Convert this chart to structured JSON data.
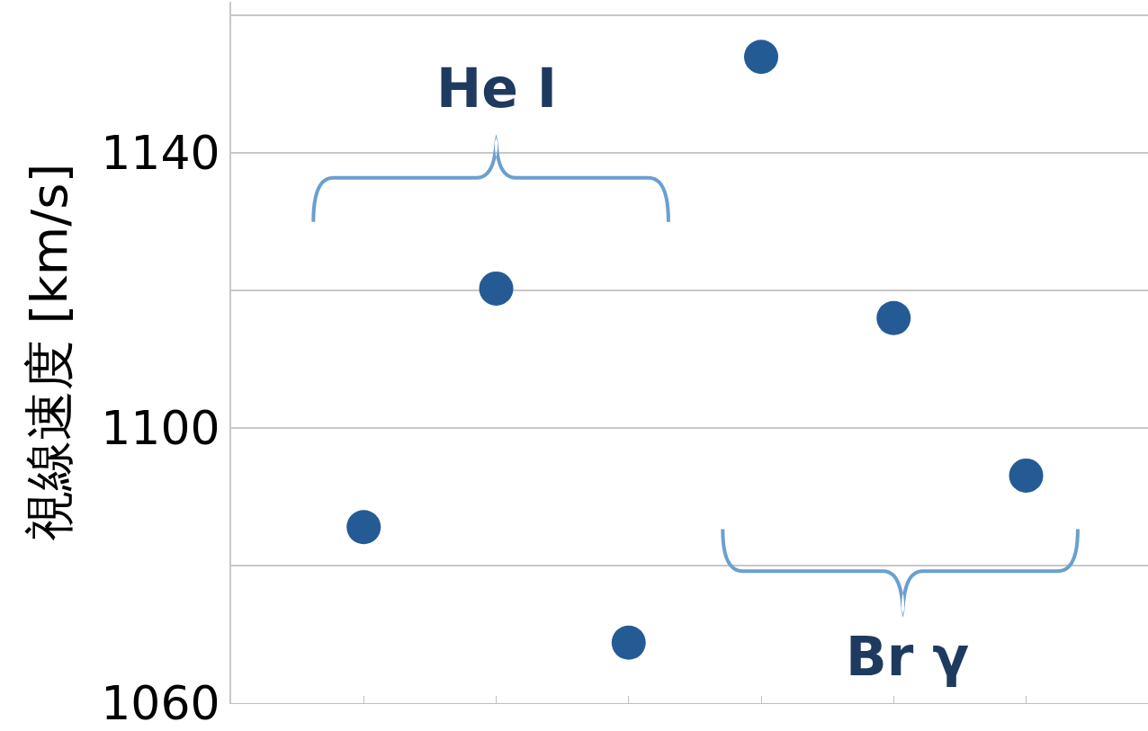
{
  "chart_data": {
    "type": "scatter",
    "ylabel": "視線速度 [km/s]",
    "categories": [
      null,
      null,
      null,
      null,
      null,
      null
    ],
    "series": [
      {
        "color": "#255b94",
        "values": [
          1085.6,
          1120.3,
          1068.8,
          1154,
          1116,
          1093.1
        ]
      }
    ],
    "ylim": [
      1060,
      1162
    ],
    "yticks": [
      1060,
      {
        "value": 1080,
        "label": null
      },
      1100,
      {
        "value": 1120,
        "label": null
      },
      1140,
      {
        "value": 1160,
        "label": null
      }
    ],
    "grid": "y",
    "marker": "circle",
    "legend": false,
    "tick_labels": "y",
    "annotations": [
      "He I",
      "Br γ"
    ]
  }
}
